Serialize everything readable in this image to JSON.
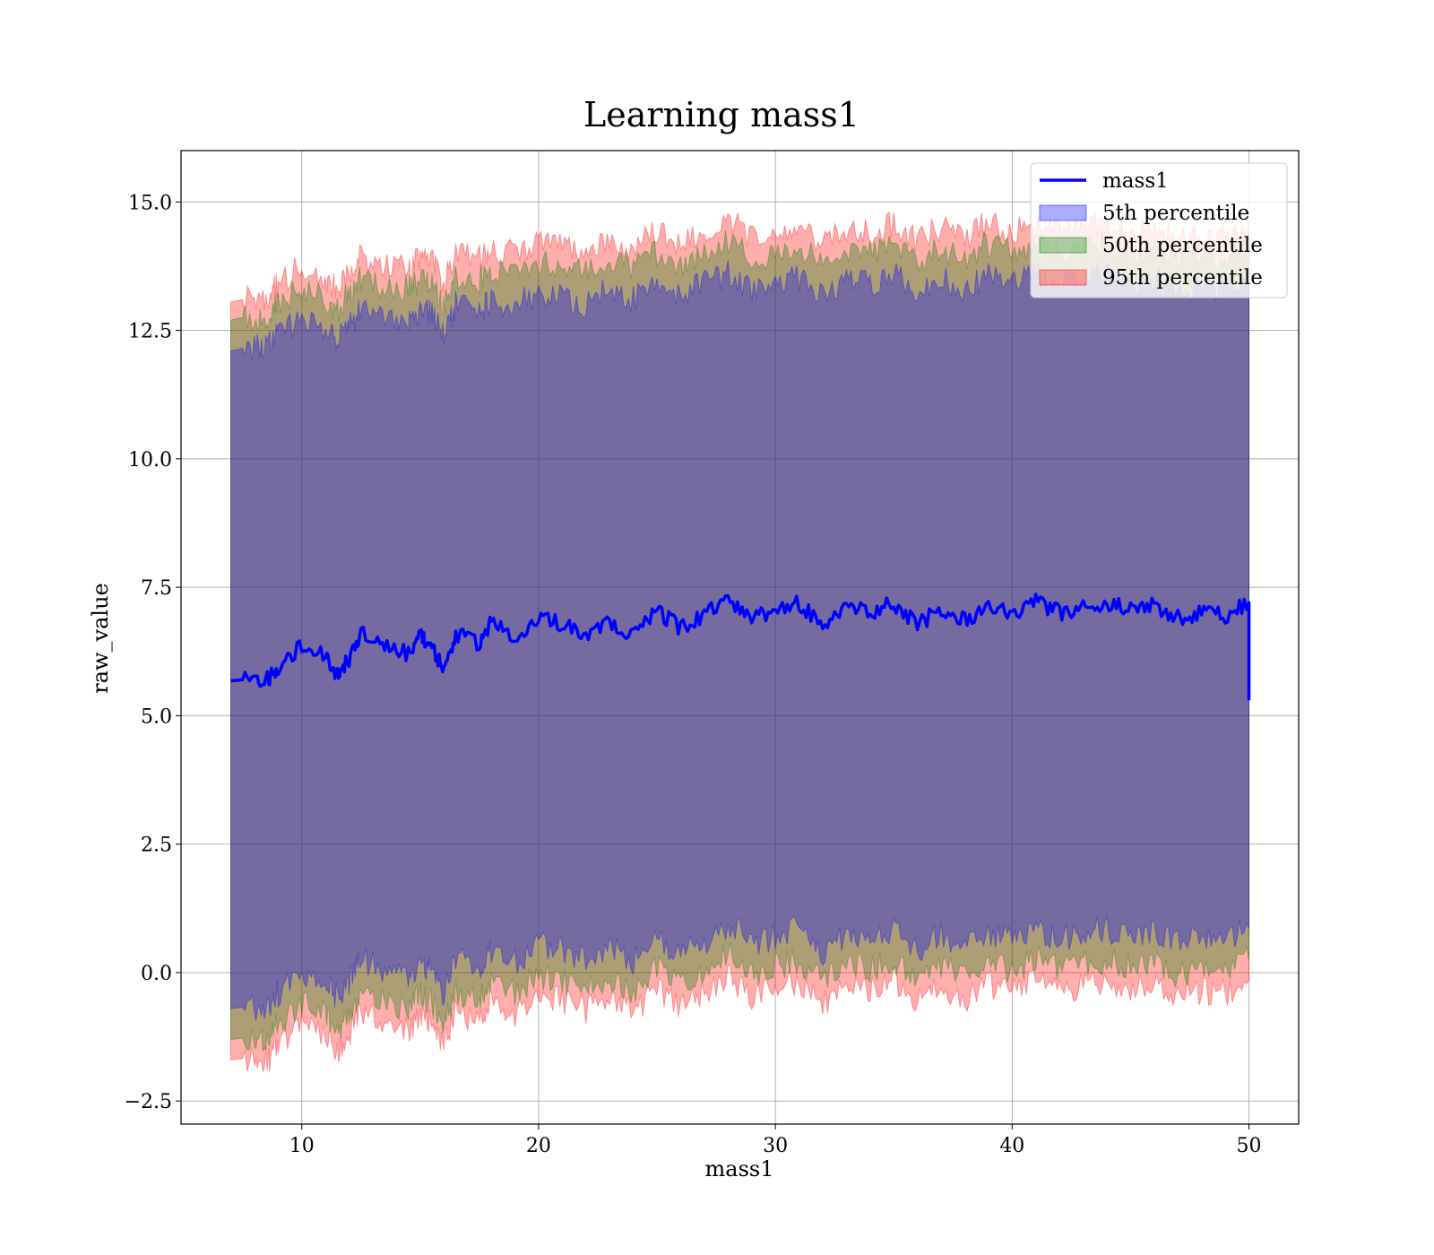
{
  "chart_data": {
    "type": "area",
    "title": "Learning mass1",
    "xlabel": "mass1",
    "ylabel": "raw_value",
    "xlim": [
      4.9,
      52.1
    ],
    "ylim": [
      -2.95,
      16.0
    ],
    "x_ticks": [
      10,
      20,
      30,
      40,
      50
    ],
    "x_tick_labels": [
      "10",
      "20",
      "30",
      "40",
      "50"
    ],
    "y_ticks": [
      -2.5,
      0.0,
      2.5,
      5.0,
      7.5,
      10.0,
      12.5,
      15.0
    ],
    "y_tick_labels": [
      "−2.5",
      "0.0",
      "2.5",
      "5.0",
      "7.5",
      "10.0",
      "12.5",
      "15.0"
    ],
    "grid": true,
    "legend_position": "top-right",
    "legend": [
      "mass1",
      "5th percentile",
      "50th percentile",
      "95th percentile"
    ],
    "colors": {
      "line": "#0000ff",
      "p5": "#0000ff",
      "p50": "#008000",
      "p95": "#ff0000",
      "grid": "#b0b0b0"
    },
    "x": [
      7.0,
      8.0,
      8.6,
      9.0,
      10.0,
      11.0,
      11.5,
      12.0,
      12.5,
      13.5,
      14.5,
      15.0,
      15.5,
      16.0,
      16.5,
      17.5,
      18.0,
      19.0,
      20.0,
      21.0,
      22.0,
      23.0,
      24.0,
      25.0,
      26.0,
      27.0,
      28.0,
      29.0,
      30.0,
      31.0,
      32.0,
      33.0,
      34.0,
      35.0,
      36.0,
      37.0,
      38.0,
      39.0,
      40.0,
      41.0,
      42.0,
      43.0,
      44.0,
      45.0,
      46.0,
      47.0,
      48.0,
      49.0,
      50.0
    ],
    "series": [
      {
        "name": "mass1",
        "kind": "line",
        "values": [
          5.68,
          5.72,
          5.7,
          5.95,
          6.35,
          6.15,
          5.8,
          6.1,
          6.6,
          6.4,
          6.2,
          6.55,
          6.35,
          5.85,
          6.6,
          6.4,
          6.8,
          6.55,
          6.9,
          6.8,
          6.6,
          6.85,
          6.55,
          7.05,
          6.7,
          6.95,
          7.3,
          6.9,
          7.05,
          7.2,
          6.75,
          7.1,
          7.0,
          7.2,
          6.75,
          7.1,
          6.85,
          7.15,
          6.95,
          7.25,
          7.0,
          7.1,
          7.2,
          7.05,
          7.15,
          6.9,
          7.0,
          6.95,
          7.2
        ]
      },
      {
        "name": "5th percentile",
        "kind": "band",
        "upper": [
          12.1,
          12.2,
          12.2,
          12.4,
          12.7,
          12.5,
          12.3,
          12.6,
          12.9,
          12.8,
          12.7,
          12.9,
          12.8,
          12.4,
          13.0,
          12.9,
          13.1,
          13.0,
          13.2,
          13.2,
          13.0,
          13.3,
          13.1,
          13.4,
          13.2,
          13.4,
          13.6,
          13.3,
          13.4,
          13.5,
          13.2,
          13.5,
          13.4,
          13.6,
          13.2,
          13.5,
          13.3,
          13.6,
          13.4,
          13.6,
          13.4,
          13.5,
          13.6,
          13.4,
          13.5,
          13.3,
          13.4,
          13.3,
          13.5
        ],
        "lower": [
          -0.7,
          -0.65,
          -0.7,
          -0.4,
          0.0,
          -0.2,
          -0.5,
          -0.2,
          0.25,
          0.05,
          -0.15,
          0.2,
          0.0,
          -0.45,
          0.25,
          0.05,
          0.45,
          0.2,
          0.55,
          0.45,
          0.25,
          0.5,
          0.2,
          0.7,
          0.35,
          0.6,
          0.95,
          0.55,
          0.7,
          0.85,
          0.4,
          0.75,
          0.65,
          0.85,
          0.4,
          0.75,
          0.5,
          0.8,
          0.6,
          0.9,
          0.65,
          0.75,
          0.85,
          0.7,
          0.8,
          0.55,
          0.65,
          0.6,
          0.85
        ]
      },
      {
        "name": "50th percentile",
        "kind": "band",
        "upper": [
          12.7,
          12.8,
          12.8,
          13.0,
          13.3,
          13.1,
          12.9,
          13.2,
          13.5,
          13.4,
          13.3,
          13.5,
          13.4,
          13.0,
          13.6,
          13.5,
          13.7,
          13.6,
          13.8,
          13.8,
          13.6,
          13.9,
          13.7,
          14.0,
          13.8,
          14.0,
          14.2,
          13.9,
          14.0,
          14.1,
          13.8,
          14.1,
          14.0,
          14.2,
          13.8,
          14.1,
          13.9,
          14.2,
          14.0,
          14.2,
          14.0,
          14.1,
          14.2,
          14.0,
          14.1,
          13.9,
          14.0,
          13.9,
          14.1
        ],
        "lower": [
          -1.3,
          -1.25,
          -1.3,
          -1.0,
          -0.6,
          -0.8,
          -1.1,
          -0.8,
          -0.35,
          -0.55,
          -0.75,
          -0.4,
          -0.6,
          -1.05,
          -0.35,
          -0.55,
          -0.15,
          -0.4,
          -0.05,
          -0.15,
          -0.35,
          -0.1,
          -0.4,
          0.1,
          -0.25,
          0.0,
          0.35,
          -0.05,
          0.1,
          0.25,
          -0.2,
          0.15,
          0.05,
          0.25,
          -0.2,
          0.15,
          -0.1,
          0.2,
          0.0,
          0.3,
          0.05,
          0.15,
          0.25,
          0.1,
          0.2,
          -0.05,
          0.05,
          0.0,
          0.25
        ]
      },
      {
        "name": "95th percentile",
        "kind": "band",
        "upper": [
          13.05,
          13.15,
          13.15,
          13.4,
          13.75,
          13.5,
          13.3,
          13.6,
          13.95,
          13.8,
          13.7,
          13.9,
          13.8,
          13.4,
          14.0,
          13.9,
          14.1,
          14.0,
          14.25,
          14.2,
          14.0,
          14.3,
          14.1,
          14.45,
          14.2,
          14.4,
          14.7,
          14.3,
          14.45,
          14.55,
          14.2,
          14.5,
          14.4,
          14.6,
          14.2,
          14.55,
          14.3,
          14.6,
          14.4,
          14.6,
          14.4,
          14.5,
          14.6,
          14.4,
          14.5,
          14.3,
          14.4,
          14.3,
          14.5
        ],
        "lower": [
          -1.7,
          -1.65,
          -1.7,
          -1.4,
          -1.0,
          -1.2,
          -1.5,
          -1.2,
          -0.75,
          -0.95,
          -1.15,
          -0.8,
          -1.0,
          -1.45,
          -0.75,
          -0.95,
          -0.55,
          -0.8,
          -0.45,
          -0.55,
          -0.75,
          -0.5,
          -0.8,
          -0.3,
          -0.65,
          -0.4,
          -0.05,
          -0.45,
          -0.3,
          -0.15,
          -0.6,
          -0.25,
          -0.35,
          -0.15,
          -0.6,
          -0.25,
          -0.5,
          -0.2,
          -0.4,
          -0.1,
          -0.35,
          -0.25,
          -0.15,
          -0.3,
          -0.2,
          -0.45,
          -0.35,
          -0.4,
          -0.15
        ]
      }
    ]
  }
}
